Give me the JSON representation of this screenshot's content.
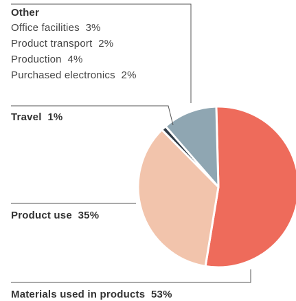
{
  "chart_data": {
    "type": "pie",
    "slices": [
      {
        "name": "Materials used in products",
        "value": 53,
        "color": "#ee6b5b"
      },
      {
        "name": "Product use",
        "value": 35,
        "color": "#f2c4ac"
      },
      {
        "name": "Travel",
        "value": 1,
        "color": "#2f3a45"
      },
      {
        "name": "Other",
        "value": 11,
        "color": "#8fa6b2"
      }
    ],
    "labels": {
      "materials": {
        "name": "Materials used in products",
        "value": "53%"
      },
      "product_use": {
        "name": "Product use",
        "value": "35%"
      },
      "travel": {
        "name": "Travel",
        "value": "1%"
      },
      "other": {
        "title": "Other",
        "items": [
          {
            "name": "Office facilities",
            "value": "3%"
          },
          {
            "name": "Product transport",
            "value": "2%"
          },
          {
            "name": "Production",
            "value": "4%"
          },
          {
            "name": "Purchased electronics",
            "value": "2%"
          }
        ]
      }
    }
  }
}
